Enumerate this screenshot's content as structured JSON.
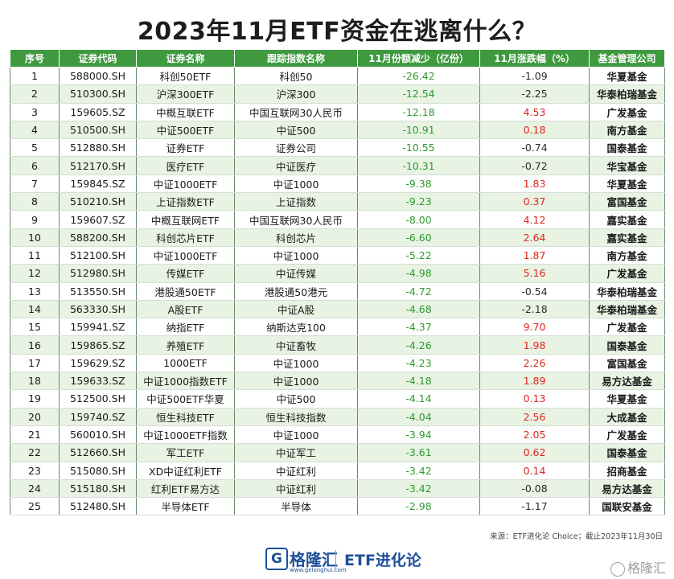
{
  "title": "2023年11月ETF资金在逃离什么？",
  "headers": [
    "序号",
    "证券代码",
    "证券名称",
    "跟踪指数名称",
    "11月份额减少（亿份）",
    "11月涨跌幅（%）",
    "基金管理公司"
  ],
  "rows": [
    [
      "1",
      "588000.SH",
      "科创50ETF",
      "科创50",
      "-26.42",
      "-1.09",
      "华夏基金"
    ],
    [
      "2",
      "510300.SH",
      "沪深300ETF",
      "沪深300",
      "-12.54",
      "-2.25",
      "华泰柏瑞基金"
    ],
    [
      "3",
      "159605.SZ",
      "中概互联ETF",
      "中国互联网30人民币",
      "-12.18",
      "4.53",
      "广发基金"
    ],
    [
      "4",
      "510500.SH",
      "中证500ETF",
      "中证500",
      "-10.91",
      "0.18",
      "南方基金"
    ],
    [
      "5",
      "512880.SH",
      "证券ETF",
      "证券公司",
      "-10.55",
      "-0.74",
      "国泰基金"
    ],
    [
      "6",
      "512170.SH",
      "医疗ETF",
      "中证医疗",
      "-10.31",
      "-0.72",
      "华宝基金"
    ],
    [
      "7",
      "159845.SZ",
      "中证1000ETF",
      "中证1000",
      "-9.38",
      "1.83",
      "华夏基金"
    ],
    [
      "8",
      "510210.SH",
      "上证指数ETF",
      "上证指数",
      "-9.23",
      "0.37",
      "富国基金"
    ],
    [
      "9",
      "159607.SZ",
      "中概互联网ETF",
      "中国互联网30人民币",
      "-8.00",
      "4.12",
      "嘉实基金"
    ],
    [
      "10",
      "588200.SH",
      "科创芯片ETF",
      "科创芯片",
      "-6.60",
      "2.64",
      "嘉实基金"
    ],
    [
      "11",
      "512100.SH",
      "中证1000ETF",
      "中证1000",
      "-5.22",
      "1.87",
      "南方基金"
    ],
    [
      "12",
      "512980.SH",
      "传媒ETF",
      "中证传媒",
      "-4.98",
      "5.16",
      "广发基金"
    ],
    [
      "13",
      "513550.SH",
      "港股通50ETF",
      "港股通50港元",
      "-4.72",
      "-0.54",
      "华泰柏瑞基金"
    ],
    [
      "14",
      "563330.SH",
      "A股ETF",
      "中证A股",
      "-4.68",
      "-2.18",
      "华泰柏瑞基金"
    ],
    [
      "15",
      "159941.SZ",
      "纳指ETF",
      "纳斯达克100",
      "-4.37",
      "9.70",
      "广发基金"
    ],
    [
      "16",
      "159865.SZ",
      "养殖ETF",
      "中证畜牧",
      "-4.26",
      "1.98",
      "国泰基金"
    ],
    [
      "17",
      "159629.SZ",
      "1000ETF",
      "中证1000",
      "-4.23",
      "2.26",
      "富国基金"
    ],
    [
      "18",
      "159633.SZ",
      "中证1000指数ETF",
      "中证1000",
      "-4.18",
      "1.89",
      "易方达基金"
    ],
    [
      "19",
      "512500.SH",
      "中证500ETF华夏",
      "中证500",
      "-4.14",
      "0.13",
      "华夏基金"
    ],
    [
      "20",
      "159740.SZ",
      "恒生科技ETF",
      "恒生科技指数",
      "-4.04",
      "2.56",
      "大成基金"
    ],
    [
      "21",
      "560010.SH",
      "中证1000ETF指数",
      "中证1000",
      "-3.94",
      "2.05",
      "广发基金"
    ],
    [
      "22",
      "512660.SH",
      "军工ETF",
      "中证军工",
      "-3.61",
      "0.62",
      "国泰基金"
    ],
    [
      "23",
      "515080.SH",
      "XD中证红利ETF",
      "中证红利",
      "-3.42",
      "0.14",
      "招商基金"
    ],
    [
      "24",
      "515180.SH",
      "红利ETF易方达",
      "中证红利",
      "-3.42",
      "-0.08",
      "易方达基金"
    ],
    [
      "25",
      "512480.SH",
      "半导体ETF",
      "半导体",
      "-2.98",
      "-1.17",
      "国联安基金"
    ]
  ],
  "source": "来源：ETF进化论 Choice；截止2023年11月30日",
  "footer": {
    "logo_mark": "G",
    "logo_text": "格隆汇",
    "logo_url": "www.gelonghui.com",
    "brand": "ETF进化论",
    "watermark": "格隆汇"
  },
  "colors": {
    "header_bg": "#3f9a3f",
    "alt_row_bg": "#e8f3e3",
    "negative_share": "#2e9a2e",
    "positive_change": "#e0251c",
    "brand_blue": "#1e4f9a"
  }
}
